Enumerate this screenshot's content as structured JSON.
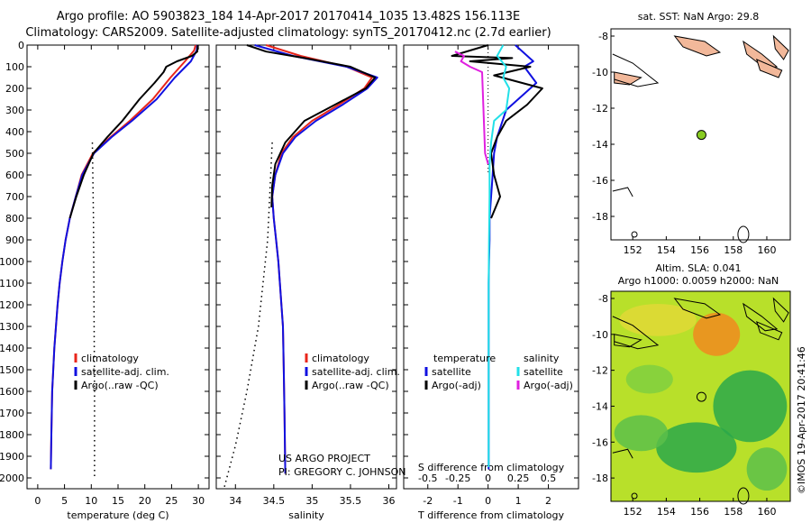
{
  "titles": {
    "line1": "Argo profile: AO 5903823_184 14-Apr-2017 20170414_1035 13.482S 156.113E",
    "line2": "Climatology: CARS2009. Satellite-adjusted climatology: synTS_20170412.nc (2.7d earlier)"
  },
  "map_titles": {
    "sst": "sat. SST: NaN Argo: 29.8",
    "sla1": "Altim. SLA: 0.041",
    "sla2": "Argo h1000: 0.0059 h2000: NaN"
  },
  "stamp": "©IMOS 19-Apr-2017 20:41:46",
  "annotation": {
    "line1": "US ARGO PROJECT",
    "line2": "PI: GREGORY C. JOHNSON"
  },
  "colors": {
    "climatology": "#e8261b",
    "satellite": "#1010e0",
    "argo": "#000000",
    "salinity_satellite": "#22e0e8",
    "salinity_argo": "#e020e0",
    "argo_dot": "#88cc22",
    "sla_high": "#f08a1e",
    "sla_mid": "#b8e02a",
    "sla_low": "#2aa84a",
    "land": "#f2b89a"
  },
  "legends": {
    "temp": [
      "climatology",
      "satellite-adj. clim.",
      "Argo(..raw -QC)"
    ],
    "sal": [
      "climatology",
      "satellite-adj. clim.",
      "Argo(..raw -QC)"
    ],
    "diff_header_t": "temperature",
    "diff_header_s": "salinity",
    "diff_t": [
      "satellite",
      "Argo(-adj)"
    ],
    "diff_s": [
      "satellite",
      "Argo(-adj)"
    ]
  },
  "chart_data": [
    {
      "type": "line",
      "panel": "temperature",
      "xlabel": "temperature (deg C)",
      "ylabel": "",
      "xlim": [
        -2,
        32
      ],
      "ylim": [
        2050,
        0
      ],
      "xticks": [
        0,
        5,
        10,
        15,
        20,
        25,
        30
      ],
      "yticks": [
        0,
        100,
        200,
        300,
        400,
        500,
        600,
        700,
        800,
        900,
        1000,
        1100,
        1200,
        1300,
        1400,
        1500,
        1600,
        1700,
        1800,
        1900,
        2000
      ],
      "series": [
        {
          "name": "climatology",
          "x": [
            29.5,
            29.2,
            27.5,
            24.8,
            21.5,
            17.2,
            13.6,
            10.3,
            8.2,
            7.1,
            6.0,
            5.2,
            4.6,
            4.1,
            3.7,
            3.4,
            3.1,
            2.9,
            2.7,
            2.55,
            2.45
          ],
          "y": [
            0,
            25,
            75,
            150,
            250,
            350,
            425,
            500,
            600,
            700,
            800,
            900,
            1000,
            1100,
            1200,
            1300,
            1400,
            1500,
            1600,
            1800,
            1960
          ]
        },
        {
          "name": "satellite-adj. clim.",
          "x": [
            29.8,
            29.7,
            28.6,
            25.6,
            22.2,
            17.6,
            13.8,
            10.5,
            8.3,
            7.1,
            6.0,
            5.2,
            4.6,
            4.1,
            3.7,
            3.4,
            3.1,
            2.9,
            2.7,
            2.55,
            2.45
          ],
          "y": [
            0,
            25,
            75,
            150,
            250,
            350,
            425,
            500,
            600,
            700,
            800,
            900,
            1000,
            1100,
            1200,
            1300,
            1400,
            1500,
            1600,
            1800,
            1960
          ]
        },
        {
          "name": "Argo(..raw -QC)",
          "x": [
            29.9,
            29.8,
            28.8,
            26.0,
            24.0,
            23.5,
            21.8,
            19.0,
            15.8,
            13.0,
            10.4,
            8.6,
            7.2,
            6.0
          ],
          "y": [
            0,
            30,
            50,
            75,
            100,
            125,
            175,
            250,
            350,
            425,
            500,
            600,
            700,
            800
          ]
        },
        {
          "name": "Argo(..raw -QC) dotted",
          "x": [
            10.2,
            10.4,
            10.5,
            10.6,
            10.6
          ],
          "y": [
            450,
            800,
            1200,
            1600,
            2000
          ]
        }
      ]
    },
    {
      "type": "line",
      "panel": "salinity",
      "xlabel": "salinity",
      "ylabel": "",
      "xlim": [
        33.75,
        36.1
      ],
      "ylim": [
        2050,
        0
      ],
      "xticks": [
        34,
        34.5,
        35,
        35.5,
        36
      ],
      "series": [
        {
          "name": "climatology",
          "x": [
            34.4,
            34.85,
            35.45,
            35.78,
            35.68,
            35.35,
            35.0,
            34.75,
            34.6,
            34.52,
            34.48,
            34.5,
            34.53,
            34.56,
            34.58,
            34.6,
            34.62,
            34.63,
            34.64,
            34.65
          ],
          "y": [
            0,
            50,
            100,
            150,
            200,
            275,
            350,
            425,
            500,
            600,
            700,
            800,
            900,
            1000,
            1100,
            1200,
            1300,
            1500,
            1700,
            1980
          ]
        },
        {
          "name": "satellite-adj. clim.",
          "x": [
            34.25,
            34.75,
            35.45,
            35.85,
            35.72,
            35.4,
            35.05,
            34.78,
            34.62,
            34.52,
            34.48,
            34.5,
            34.53,
            34.56,
            34.58,
            34.6,
            34.62,
            34.63,
            34.64,
            34.65
          ],
          "y": [
            0,
            50,
            100,
            150,
            200,
            275,
            350,
            425,
            500,
            600,
            700,
            800,
            900,
            1000,
            1100,
            1200,
            1300,
            1500,
            1700,
            1980
          ]
        },
        {
          "name": "Argo(..raw -QC)",
          "x": [
            34.15,
            34.4,
            34.9,
            35.5,
            35.82,
            35.7,
            35.3,
            34.9,
            34.65,
            34.52,
            34.48,
            34.47
          ],
          "y": [
            0,
            30,
            60,
            100,
            150,
            200,
            275,
            350,
            450,
            550,
            650,
            750
          ]
        },
        {
          "name": "Argo(..raw -QC) dotted",
          "x": [
            34.48,
            34.42,
            34.3,
            34.15,
            34.0,
            33.85
          ],
          "y": [
            450,
            900,
            1300,
            1600,
            1850,
            2050
          ]
        }
      ]
    },
    {
      "type": "line",
      "panel": "difference",
      "xlabel": "T difference from climatology",
      "xlabel_top": "S difference from climatology",
      "xlim": [
        -2.8,
        3.0
      ],
      "ylim": [
        2050,
        0
      ],
      "xticks": [
        -2,
        -1,
        0,
        1,
        2
      ],
      "xticks_s": [
        -0.5,
        -0.25,
        0,
        0.25,
        0.5
      ],
      "series": [
        {
          "name": "temperature satellite",
          "x": [
            0.9,
            1.5,
            1.2,
            1.6,
            1.2,
            0.6,
            0.3,
            0.2,
            0.15,
            0.1,
            0.05,
            0.05,
            0.03,
            0.02,
            0.02,
            0.02,
            0.02,
            0.02,
            0.02,
            0.02,
            0.02
          ],
          "y": [
            0,
            75,
            100,
            175,
            225,
            300,
            425,
            500,
            600,
            700,
            800,
            900,
            1000,
            1100,
            1200,
            1300,
            1400,
            1500,
            1600,
            1800,
            1960
          ]
        },
        {
          "name": "temperature Argo(-adj)",
          "x": [
            0,
            -1.2,
            0.8,
            -0.6,
            1.4,
            0.2,
            1.8,
            1.3,
            0.6,
            0.3,
            0.1,
            0.2,
            0.4,
            0.1
          ],
          "y": [
            0,
            50,
            60,
            75,
            100,
            140,
            200,
            275,
            350,
            425,
            500,
            600,
            700,
            800
          ]
        },
        {
          "name": "salinity satellite",
          "x": [
            0.5,
            0.3,
            0.6,
            0.5,
            0.7,
            0.6,
            0.2,
            0.1,
            0.05,
            0.05,
            0.03,
            0.02,
            0.02,
            0.02,
            0.02,
            0.02,
            0.02
          ],
          "y": [
            0,
            50,
            100,
            150,
            200,
            300,
            350,
            450,
            550,
            700,
            900,
            1100,
            1300,
            1500,
            1700,
            1850,
            1950
          ]
        },
        {
          "name": "salinity Argo(-adj)",
          "x": [
            -1.1,
            -0.8,
            -0.9,
            -0.6,
            -0.2,
            -0.1,
            0.0
          ],
          "y": [
            30,
            50,
            75,
            100,
            125,
            500,
            550
          ]
        }
      ]
    }
  ],
  "maps": {
    "sst": {
      "xticks": [
        152,
        154,
        156,
        158,
        160
      ],
      "yticks": [
        -8,
        -10,
        -12,
        -14,
        -16,
        -18
      ],
      "argo_point": {
        "lon": 156.1,
        "lat": -13.48
      }
    },
    "sla": {
      "xticks": [
        152,
        154,
        156,
        158,
        160
      ],
      "yticks": [
        -8,
        -10,
        -12,
        -14,
        -16,
        -18
      ],
      "argo_point": {
        "lon": 156.1,
        "lat": -13.48
      }
    }
  }
}
